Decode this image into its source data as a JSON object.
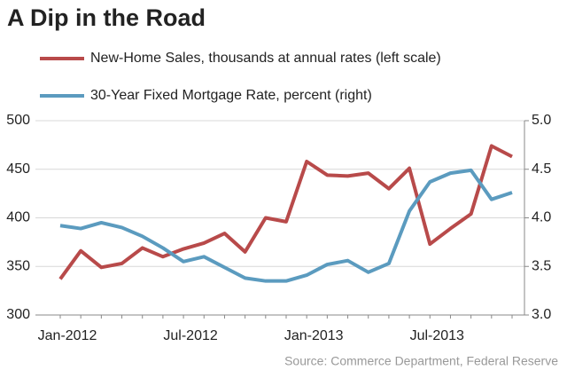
{
  "chart_data": {
    "type": "line",
    "title": "A Dip in the Road",
    "source": "Source: Commerce Department, Federal Reserve",
    "categories": [
      "Jan-2012",
      null,
      null,
      null,
      null,
      null,
      "Jul-2012",
      null,
      null,
      null,
      null,
      null,
      "Jan-2013",
      null,
      null,
      null,
      null,
      null,
      "Jul-2013",
      null,
      null,
      null,
      null
    ],
    "series": [
      {
        "name": "New-Home Sales, thousands at annual rates (left scale)",
        "color": "#b84a4a",
        "values": [
          337,
          366,
          349,
          353,
          369,
          360,
          368,
          374,
          384,
          365,
          400,
          396,
          458,
          444,
          443,
          446,
          430,
          451,
          373,
          389,
          404,
          474,
          463
        ]
      },
      {
        "name": "30-Year Fixed Mortgage Rate, percent (right)",
        "color": "#5b9bbf",
        "axis": "y2",
        "values": [
          3.92,
          3.89,
          3.95,
          3.9,
          3.81,
          3.69,
          3.55,
          3.6,
          3.49,
          3.38,
          3.35,
          3.35,
          3.41,
          3.52,
          3.56,
          3.44,
          3.53,
          4.07,
          4.37,
          4.46,
          4.49,
          4.19,
          4.26
        ]
      }
    ],
    "ylim": [
      300,
      500
    ],
    "yticks": [
      300,
      350,
      400,
      450,
      500
    ],
    "y2lim": [
      3.0,
      5.0
    ],
    "y2ticks": [
      {
        "value": 3.0,
        "label": "3.0"
      },
      3.5,
      {
        "value": 4.0,
        "label": "4.0"
      },
      4.5,
      {
        "value": 5.0,
        "label": "5.0"
      }
    ],
    "grid": true
  }
}
